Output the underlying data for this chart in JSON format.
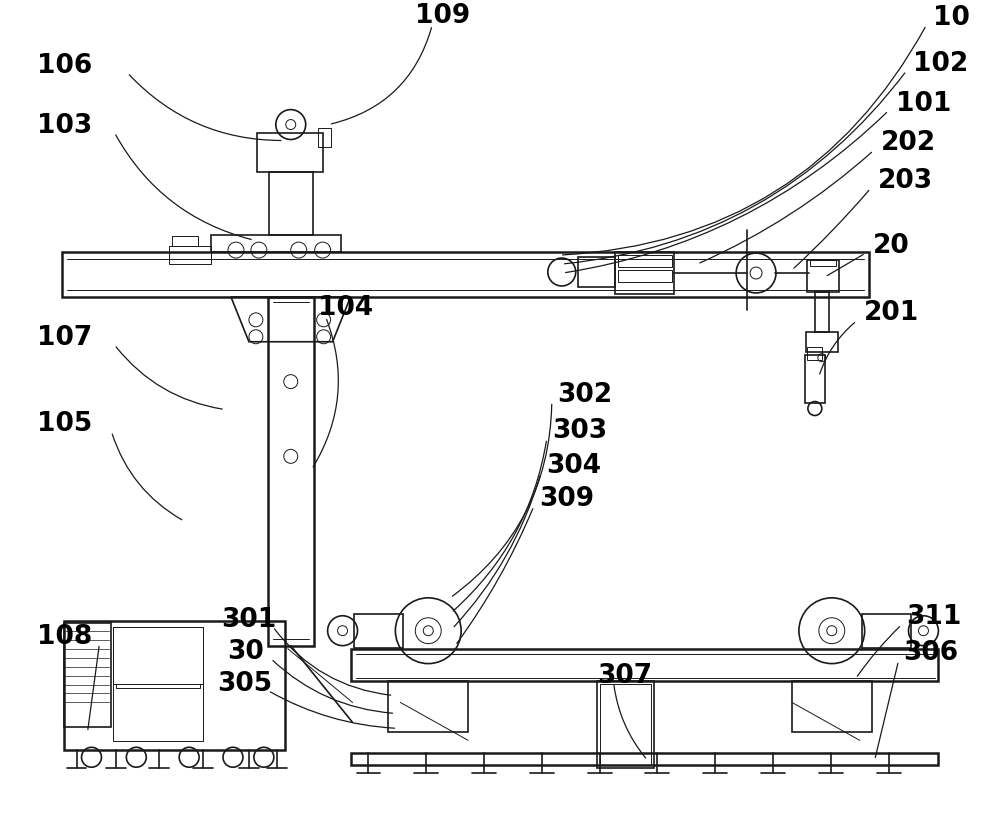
{
  "bg_color": "#ffffff",
  "line_color": "#1a1a1a",
  "label_color": "#000000",
  "font_size": 19
}
